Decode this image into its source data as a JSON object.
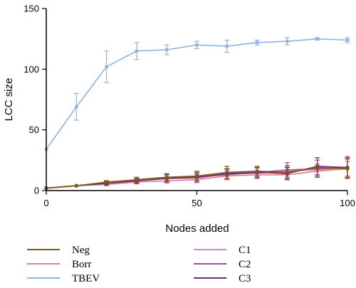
{
  "colors": {
    "Neg": "#7a5a12",
    "Borr": "#e57c86",
    "TBEV": "#8fb4e3",
    "C1": "#c98bc9",
    "C2": "#a34aa3",
    "C3": "#6a2a78"
  },
  "chart_data": {
    "type": "line",
    "xlabel": "Nodes added",
    "ylabel": "LCC size",
    "xlim": [
      0,
      100
    ],
    "ylim": [
      0,
      150
    ],
    "x_ticks": [
      0,
      50,
      100
    ],
    "y_ticks": [
      0,
      50,
      100,
      150
    ],
    "grid": false,
    "legend_position": "bottom",
    "x": [
      0,
      10,
      20,
      30,
      40,
      50,
      60,
      70,
      80,
      90,
      100
    ],
    "series": [
      {
        "name": "Neg",
        "values": [
          2,
          4,
          7,
          9,
          11,
          12,
          15,
          16,
          15,
          19,
          18
        ],
        "errors": [
          0.3,
          0.5,
          1.2,
          2,
          3,
          4,
          5,
          4,
          5,
          8,
          8
        ]
      },
      {
        "name": "Borr",
        "values": [
          2,
          4,
          5,
          7,
          8,
          9,
          12,
          13,
          13,
          16,
          18
        ],
        "errors": [
          0.3,
          0.5,
          1,
          1.5,
          2,
          2.5,
          3,
          3,
          4,
          5,
          6
        ]
      },
      {
        "name": "TBEV",
        "values": [
          34,
          69,
          102,
          115,
          116,
          120,
          119,
          122,
          123,
          125,
          124
        ],
        "errors": [
          0.5,
          11,
          13,
          7,
          4,
          3,
          5,
          2,
          3,
          1,
          2
        ]
      },
      {
        "name": "C1",
        "values": [
          2,
          4,
          6,
          8,
          10,
          10,
          14,
          14,
          16,
          17,
          19
        ],
        "errors": [
          0.3,
          0.5,
          1.5,
          2,
          3,
          3,
          4,
          4,
          5,
          5,
          8
        ]
      },
      {
        "name": "C2",
        "values": [
          2,
          4,
          6,
          8,
          10,
          11,
          13,
          15,
          17,
          18,
          19
        ],
        "errors": [
          0.3,
          0.5,
          1.5,
          2,
          3,
          4,
          4,
          5,
          6,
          7,
          9
        ]
      },
      {
        "name": "C3",
        "values": [
          2,
          4,
          6,
          8,
          10,
          11,
          14,
          15,
          14,
          20,
          19
        ],
        "errors": [
          0.3,
          0.5,
          1.5,
          2,
          3,
          3,
          4,
          4,
          5,
          7,
          8
        ]
      }
    ]
  }
}
